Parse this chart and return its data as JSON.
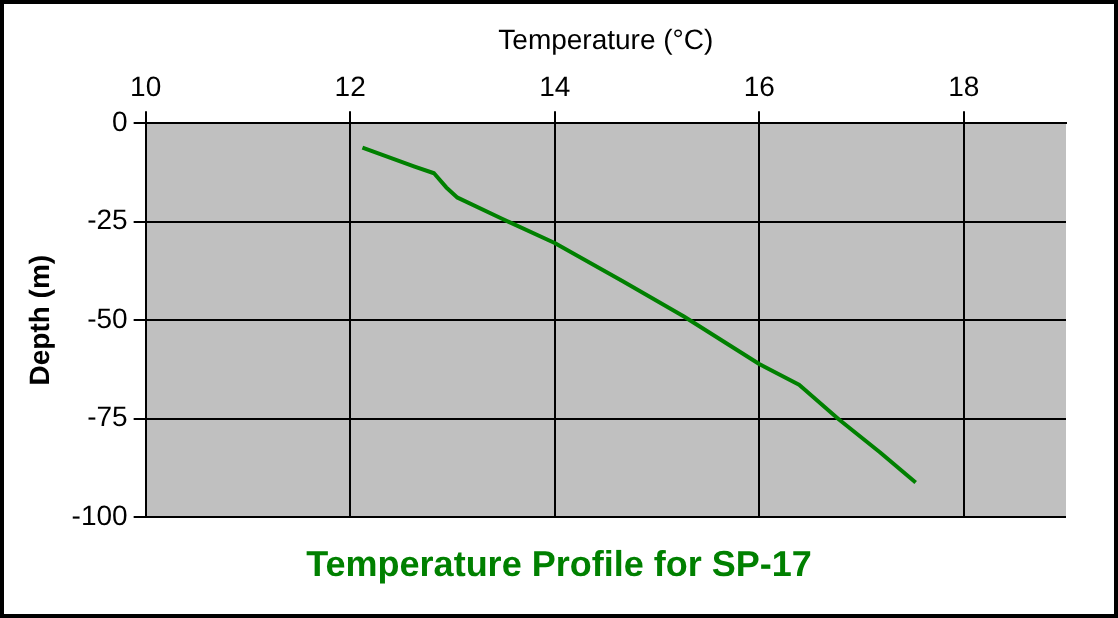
{
  "chart_data": {
    "type": "line",
    "title": "Temperature Profile for SP-17",
    "xlabel": "Temperature (°C)",
    "ylabel": "Depth (m)",
    "x": [
      12.12,
      12.63,
      12.82,
      12.94,
      13.05,
      13.48,
      14.0,
      14.67,
      15.26,
      16.0,
      16.39,
      16.78,
      17.18,
      17.53
    ],
    "series": [
      {
        "color": "#008000",
        "values": [
          -6.2,
          -11.0,
          -12.7,
          -16.3,
          -18.9,
          -24.2,
          -30.4,
          -40.2,
          -49.0,
          -61.1,
          -66.4,
          -75.2,
          -83.5,
          -91.2
        ]
      }
    ],
    "xlim": [
      10,
      19
    ],
    "xticks": [
      10,
      12,
      14,
      16,
      18
    ],
    "ylim": [
      -100,
      0
    ],
    "yticks": [
      -100,
      -75,
      -50,
      -25,
      0
    ],
    "grid": true,
    "legend": false,
    "marker": "none",
    "line_style": "solid"
  }
}
